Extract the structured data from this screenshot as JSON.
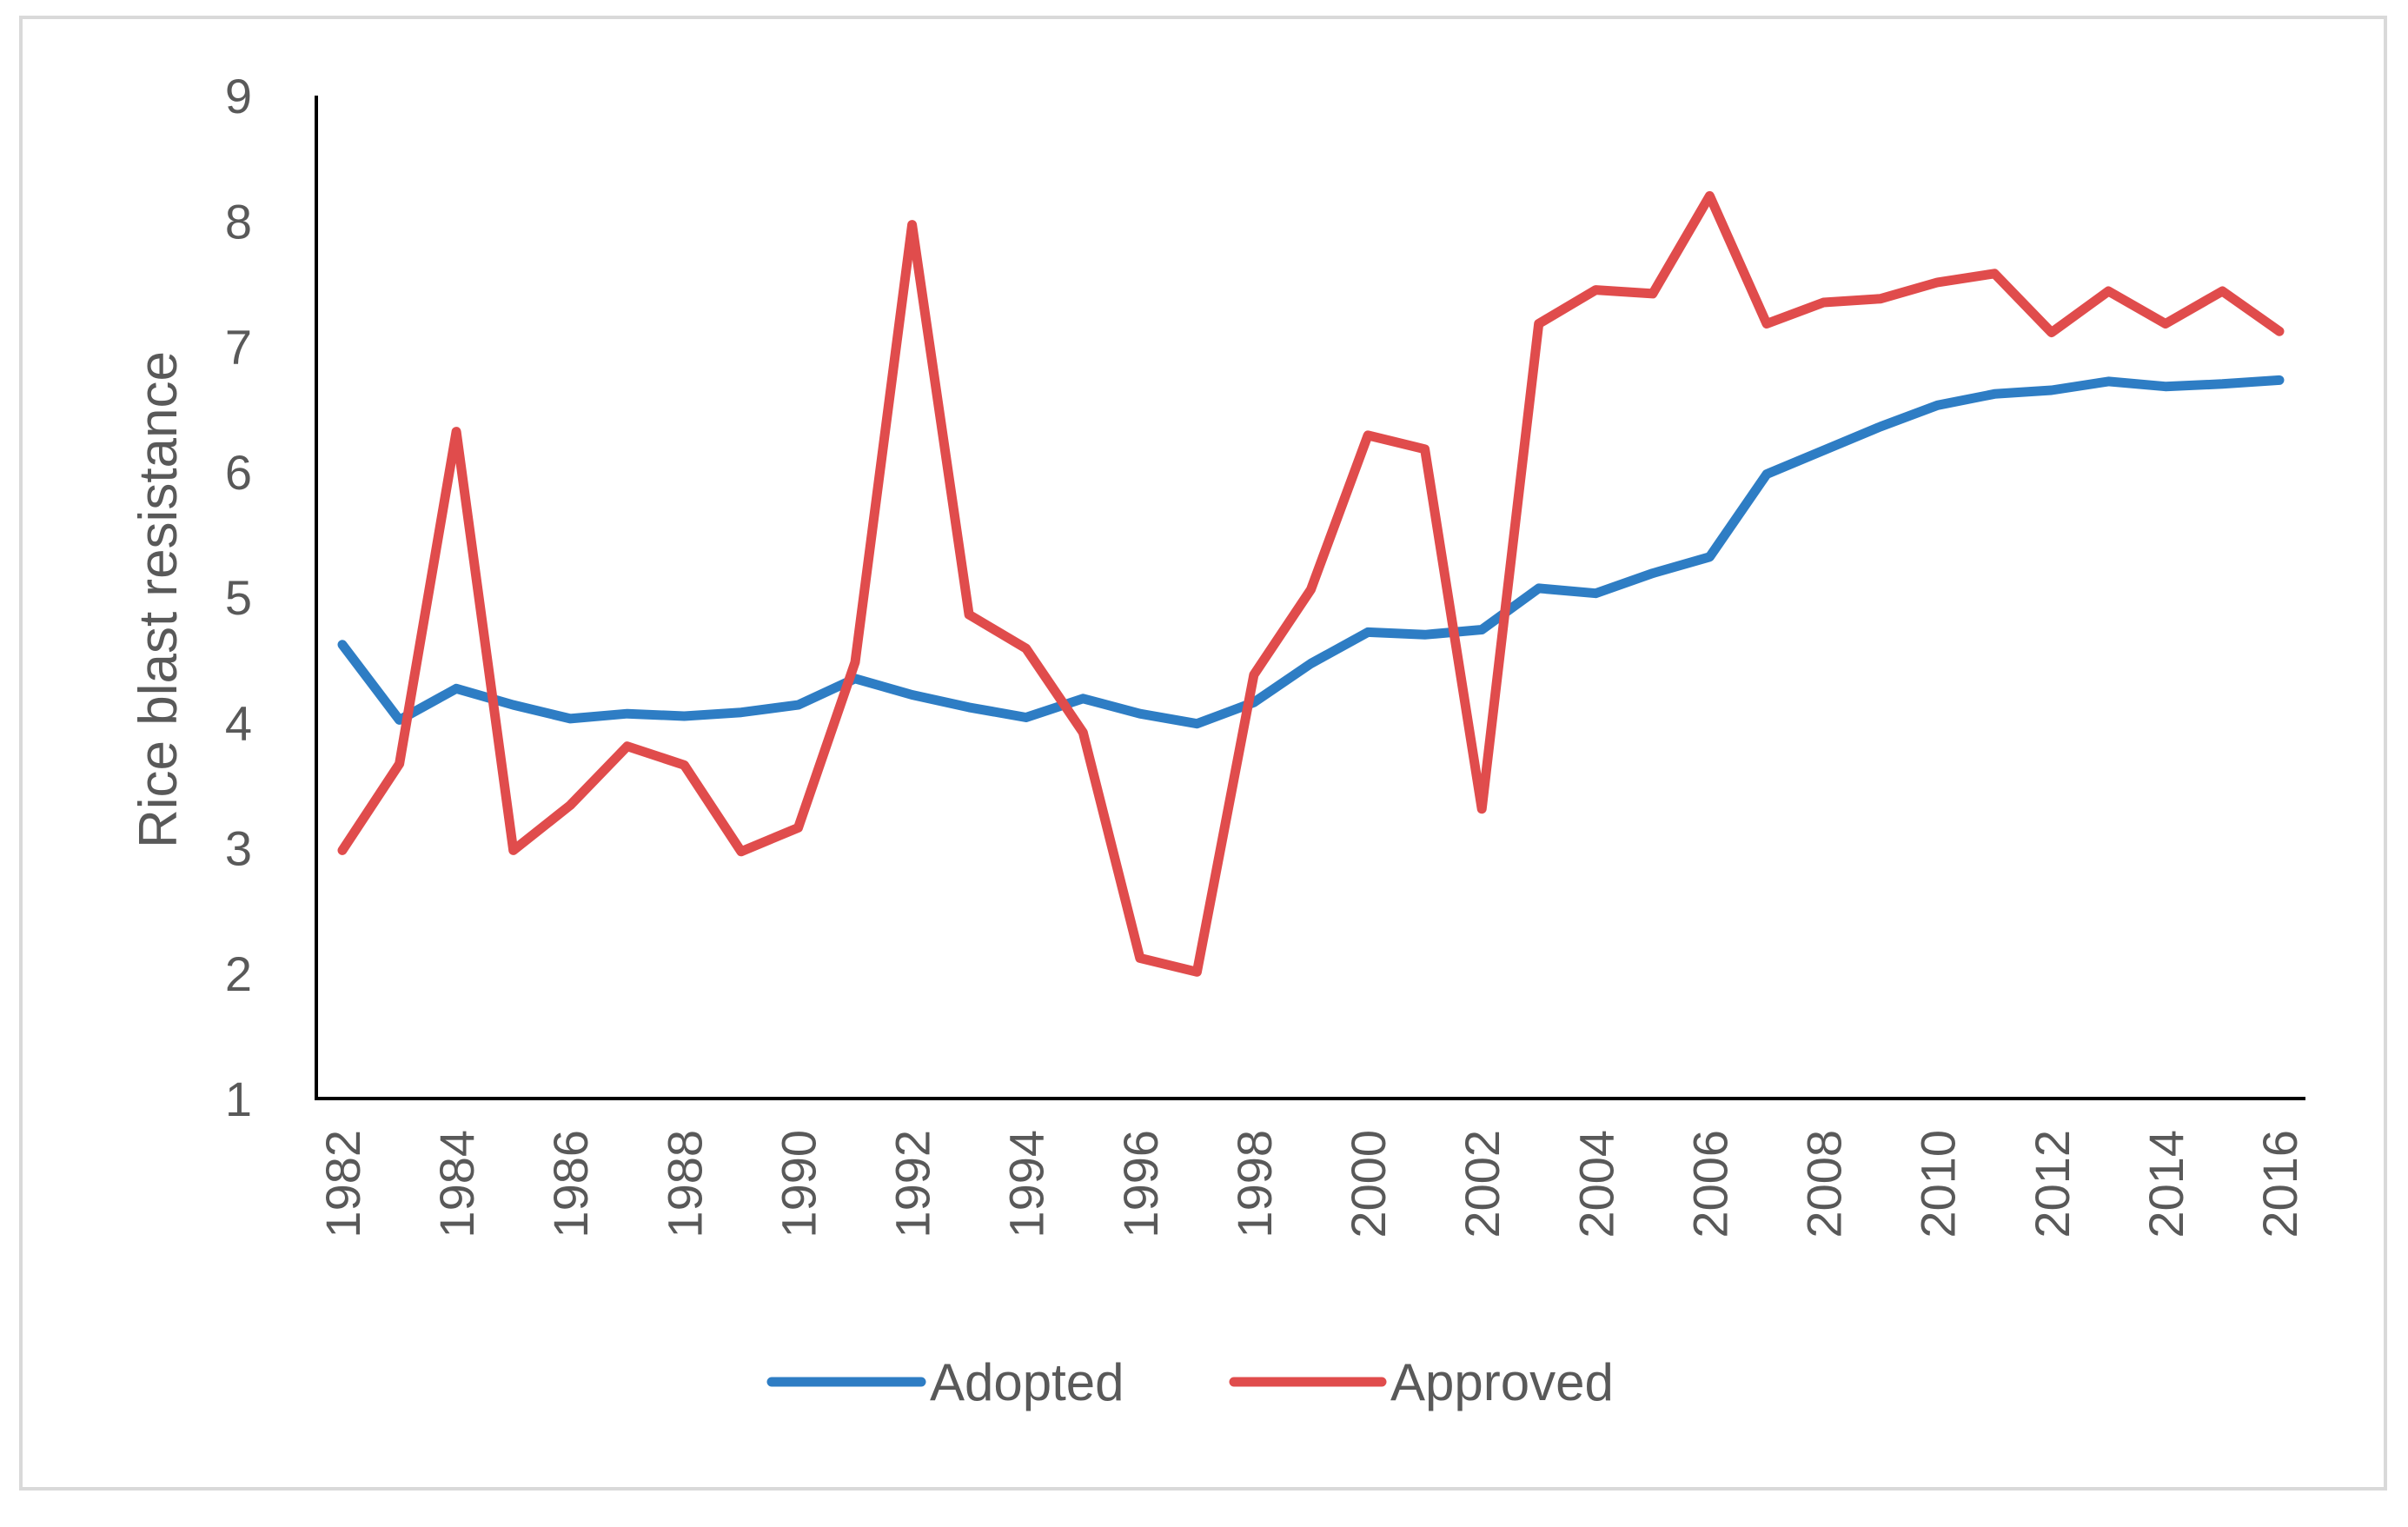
{
  "chart_data": {
    "type": "line",
    "title": "",
    "xlabel": "",
    "ylabel": "Rice blast resistance",
    "ylim": [
      1,
      9
    ],
    "yticks": [
      "1",
      "2",
      "3",
      "4",
      "5",
      "6",
      "7",
      "8",
      "9"
    ],
    "grid": false,
    "legend_position": "bottom",
    "x": [
      1982,
      1983,
      1984,
      1985,
      1986,
      1987,
      1988,
      1989,
      1990,
      1991,
      1992,
      1993,
      1994,
      1995,
      1996,
      1997,
      1998,
      1999,
      2000,
      2001,
      2002,
      2003,
      2004,
      2005,
      2006,
      2007,
      2008,
      2009,
      2010,
      2011,
      2012,
      2013,
      2014,
      2015,
      2016
    ],
    "xtick_labels": [
      "1982",
      "1984",
      "1986",
      "1988",
      "1990",
      "1992",
      "1994",
      "1996",
      "1998",
      "2000",
      "2002",
      "2004",
      "2006",
      "2008",
      "2010",
      "2012",
      "2014",
      "2016"
    ],
    "series": [
      {
        "name": "Adopted",
        "color": "#2e7dc4",
        "values": [
          4.62,
          4.02,
          4.27,
          4.14,
          4.03,
          4.07,
          4.05,
          4.08,
          4.14,
          4.35,
          4.22,
          4.12,
          4.04,
          4.19,
          4.07,
          3.99,
          4.16,
          4.47,
          4.72,
          4.7,
          4.74,
          5.07,
          5.03,
          5.19,
          5.32,
          5.98,
          6.17,
          6.36,
          6.53,
          6.62,
          6.65,
          6.72,
          6.68,
          6.7,
          6.73
        ]
      },
      {
        "name": "Approved",
        "color": "#e04c4c",
        "values": [
          2.98,
          3.67,
          6.32,
          2.98,
          3.34,
          3.81,
          3.66,
          2.97,
          3.16,
          4.48,
          7.97,
          4.86,
          4.59,
          3.92,
          2.12,
          2.01,
          4.38,
          5.06,
          6.29,
          6.18,
          3.31,
          7.18,
          7.45,
          7.42,
          8.2,
          7.18,
          7.35,
          7.38,
          7.51,
          7.58,
          7.11,
          7.44,
          7.18,
          7.44,
          7.12
        ]
      }
    ]
  }
}
